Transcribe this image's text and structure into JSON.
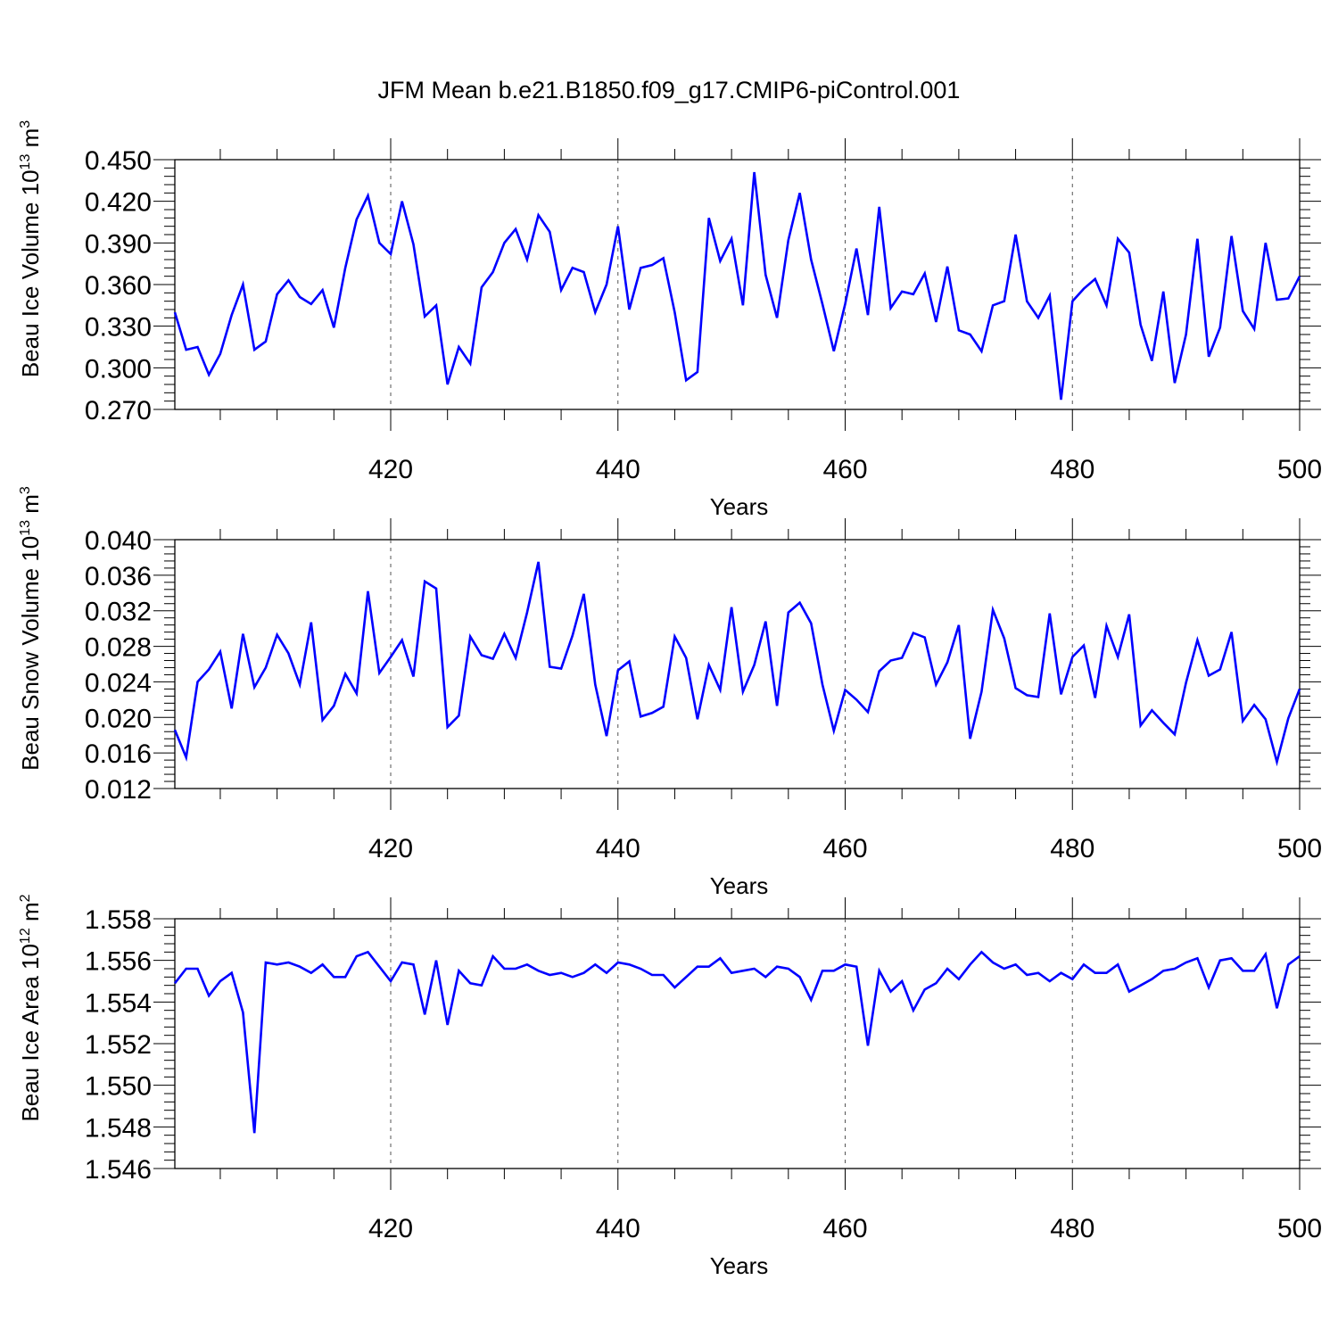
{
  "figure": {
    "title": "JFM Mean b.e21.B1850.f09_g17.CMIP6-piControl.001"
  },
  "chart_data": [
    {
      "type": "line",
      "title": "JFM Mean b.e21.B1850.f09_g17.CMIP6-piControl.001",
      "xlabel": "Years",
      "ylabel": {
        "base": "Beau Ice Volume 10",
        "sup": "13",
        "unit": " m",
        "unit_sup": "3"
      },
      "xlim": [
        401,
        500
      ],
      "ylim": [
        0.27,
        0.45
      ],
      "xticks": [
        420,
        440,
        460,
        480,
        500
      ],
      "yticks": [
        "0.270",
        "0.300",
        "0.330",
        "0.360",
        "0.390",
        "0.420",
        "0.450"
      ],
      "grid_x": [
        420,
        440,
        460,
        480
      ],
      "line_color": "#0000ff",
      "series": [
        {
          "name": "Beau Ice Volume",
          "x_start": 401,
          "values": [
            0.34,
            0.313,
            0.315,
            0.295,
            0.31,
            0.338,
            0.36,
            0.313,
            0.319,
            0.353,
            0.363,
            0.351,
            0.346,
            0.356,
            0.329,
            0.372,
            0.407,
            0.424,
            0.39,
            0.382,
            0.42,
            0.389,
            0.337,
            0.345,
            0.288,
            0.315,
            0.303,
            0.358,
            0.369,
            0.39,
            0.4,
            0.378,
            0.41,
            0.398,
            0.356,
            0.372,
            0.369,
            0.34,
            0.36,
            0.402,
            0.342,
            0.372,
            0.374,
            0.379,
            0.34,
            0.291,
            0.297,
            0.408,
            0.377,
            0.393,
            0.345,
            0.441,
            0.367,
            0.336,
            0.392,
            0.426,
            0.378,
            0.346,
            0.312,
            0.346,
            0.386,
            0.338,
            0.416,
            0.343,
            0.355,
            0.353,
            0.368,
            0.333,
            0.373,
            0.327,
            0.324,
            0.312,
            0.345,
            0.348,
            0.396,
            0.348,
            0.336,
            0.352,
            0.277,
            0.348,
            0.357,
            0.364,
            0.345,
            0.393,
            0.383,
            0.331,
            0.305,
            0.355,
            0.289,
            0.324,
            0.393,
            0.308,
            0.329,
            0.395,
            0.341,
            0.328,
            0.39,
            0.349,
            0.35,
            0.366
          ]
        }
      ]
    },
    {
      "type": "line",
      "xlabel": "Years",
      "ylabel": {
        "base": "Beau Snow Volume 10",
        "sup": "13",
        "unit": " m",
        "unit_sup": "3"
      },
      "xlim": [
        401,
        500
      ],
      "ylim": [
        0.012,
        0.04
      ],
      "xticks": [
        420,
        440,
        460,
        480,
        500
      ],
      "yticks": [
        "0.012",
        "0.016",
        "0.020",
        "0.024",
        "0.028",
        "0.032",
        "0.036",
        "0.040"
      ],
      "grid_x": [
        420,
        440,
        460,
        480
      ],
      "line_color": "#0000ff",
      "series": [
        {
          "name": "Beau Snow Volume",
          "x_start": 401,
          "values": [
            0.0186,
            0.0155,
            0.024,
            0.0254,
            0.0274,
            0.021,
            0.0294,
            0.0234,
            0.0256,
            0.0293,
            0.0272,
            0.0237,
            0.0307,
            0.0197,
            0.0213,
            0.0249,
            0.0227,
            0.0342,
            0.025,
            0.0268,
            0.0287,
            0.0246,
            0.0353,
            0.0345,
            0.0189,
            0.0202,
            0.0291,
            0.027,
            0.0266,
            0.0294,
            0.0267,
            0.0318,
            0.0375,
            0.0257,
            0.0255,
            0.0292,
            0.0339,
            0.0237,
            0.0179,
            0.0253,
            0.0263,
            0.0201,
            0.0205,
            0.0212,
            0.0291,
            0.0267,
            0.0198,
            0.0259,
            0.0231,
            0.0324,
            0.0229,
            0.0259,
            0.0308,
            0.0213,
            0.0318,
            0.0329,
            0.0306,
            0.0237,
            0.0185,
            0.0231,
            0.022,
            0.0206,
            0.0252,
            0.0264,
            0.0267,
            0.0295,
            0.029,
            0.0237,
            0.0262,
            0.0304,
            0.0176,
            0.0229,
            0.0321,
            0.0289,
            0.0233,
            0.0225,
            0.0223,
            0.0317,
            0.0226,
            0.0268,
            0.0281,
            0.0222,
            0.0303,
            0.0268,
            0.0316,
            0.0191,
            0.0208,
            0.0194,
            0.0181,
            0.0239,
            0.0287,
            0.0247,
            0.0254,
            0.0296,
            0.0196,
            0.0214,
            0.0198,
            0.015,
            0.0199,
            0.0232
          ]
        }
      ]
    },
    {
      "type": "line",
      "xlabel": "Years",
      "ylabel": {
        "base": "Beau Ice Area 10",
        "sup": "12",
        "unit": " m",
        "unit_sup": "2"
      },
      "xlim": [
        401,
        500
      ],
      "ylim": [
        1.546,
        1.558
      ],
      "xticks": [
        420,
        440,
        460,
        480,
        500
      ],
      "yticks": [
        "1.546",
        "1.548",
        "1.550",
        "1.552",
        "1.554",
        "1.556",
        "1.558"
      ],
      "grid_x": [
        420,
        440,
        460,
        480
      ],
      "line_color": "#0000ff",
      "series": [
        {
          "name": "Beau Ice Area",
          "x_start": 401,
          "values": [
            1.5549,
            1.5556,
            1.5556,
            1.5543,
            1.555,
            1.5554,
            1.5535,
            1.5477,
            1.5559,
            1.5558,
            1.5559,
            1.5557,
            1.5554,
            1.5558,
            1.5552,
            1.5552,
            1.5562,
            1.5564,
            1.5557,
            1.555,
            1.5559,
            1.5558,
            1.5534,
            1.556,
            1.5529,
            1.5555,
            1.5549,
            1.5548,
            1.5562,
            1.5556,
            1.5556,
            1.5558,
            1.5555,
            1.5553,
            1.5554,
            1.5552,
            1.5554,
            1.5558,
            1.5554,
            1.5559,
            1.5558,
            1.5556,
            1.5553,
            1.5553,
            1.5547,
            1.5552,
            1.5557,
            1.5557,
            1.5561,
            1.5554,
            1.5555,
            1.5556,
            1.5552,
            1.5557,
            1.5556,
            1.5552,
            1.5541,
            1.5555,
            1.5555,
            1.5558,
            1.5557,
            1.5519,
            1.5555,
            1.5545,
            1.555,
            1.5536,
            1.5546,
            1.5549,
            1.5556,
            1.5551,
            1.5558,
            1.5564,
            1.5559,
            1.5556,
            1.5558,
            1.5553,
            1.5554,
            1.555,
            1.5554,
            1.5551,
            1.5558,
            1.5554,
            1.5554,
            1.5558,
            1.5545,
            1.5548,
            1.5551,
            1.5555,
            1.5556,
            1.5559,
            1.5561,
            1.5547,
            1.556,
            1.5561,
            1.5555,
            1.5555,
            1.5563,
            1.5537,
            1.5558,
            1.5562
          ]
        }
      ]
    }
  ]
}
